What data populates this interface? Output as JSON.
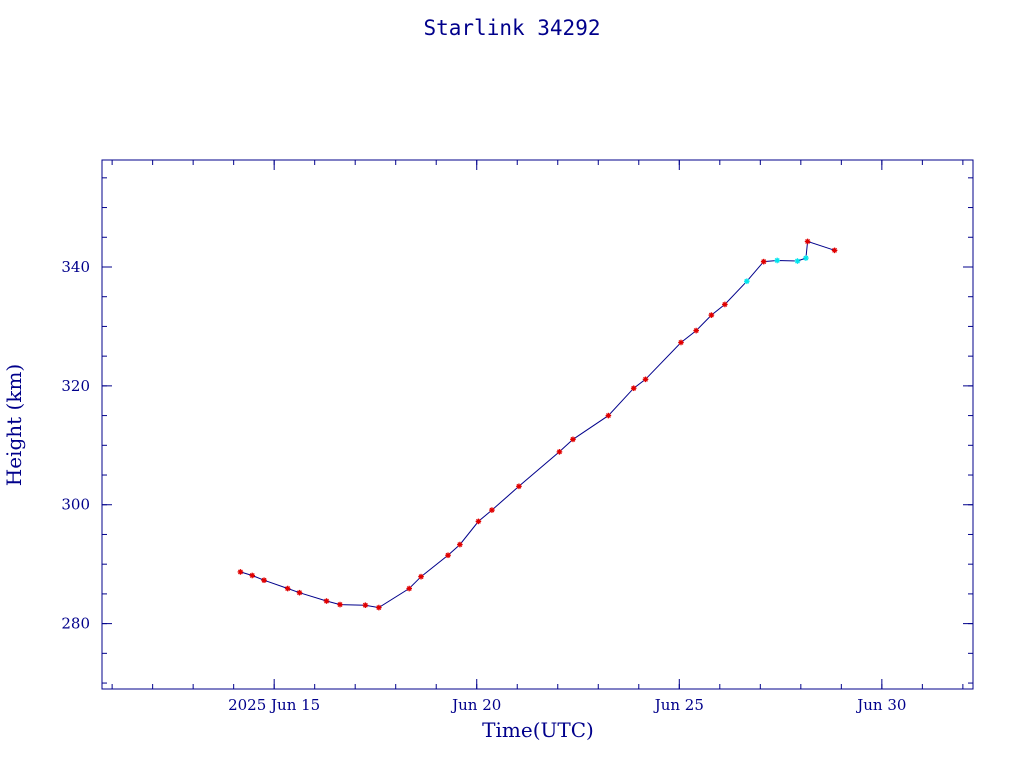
{
  "title": "Starlink 34292",
  "colors": {
    "frame": "#00008b",
    "line": "#00008b",
    "marker_primary": "#e00000",
    "marker_secondary": "#00e5ee"
  },
  "chart_data": {
    "type": "line",
    "title": "Starlink 34292",
    "xlabel": "Time(UTC)",
    "ylabel": "Height (km)",
    "x_type": "date",
    "xlim": [
      "2025-06-10T18:00",
      "2025-07-02T06:00"
    ],
    "ylim": [
      269,
      358
    ],
    "x_ticks": [
      {
        "date": "2025-06-15",
        "label": "2025 Jun 15"
      },
      {
        "date": "2025-06-20",
        "label": "Jun 20"
      },
      {
        "date": "2025-06-25",
        "label": "Jun 25"
      },
      {
        "date": "2025-06-30",
        "label": "Jun 30"
      }
    ],
    "y_ticks": [
      280,
      300,
      320,
      340
    ],
    "grid": false,
    "series": [
      {
        "marker": "asterisk",
        "points": [
          {
            "t": "2025-06-14T04:00",
            "h": 288.7,
            "c": "red"
          },
          {
            "t": "2025-06-14T11:00",
            "h": 288.1,
            "c": "red"
          },
          {
            "t": "2025-06-14T18:00",
            "h": 287.3,
            "c": "red"
          },
          {
            "t": "2025-06-15T08:00",
            "h": 285.9,
            "c": "red"
          },
          {
            "t": "2025-06-15T15:00",
            "h": 285.2,
            "c": "red"
          },
          {
            "t": "2025-06-16T07:00",
            "h": 283.8,
            "c": "red"
          },
          {
            "t": "2025-06-16T15:00",
            "h": 283.2,
            "c": "red"
          },
          {
            "t": "2025-06-17T06:00",
            "h": 283.1,
            "c": "red"
          },
          {
            "t": "2025-06-17T14:00",
            "h": 282.7,
            "c": "red"
          },
          {
            "t": "2025-06-18T08:00",
            "h": 285.9,
            "c": "red"
          },
          {
            "t": "2025-06-18T15:00",
            "h": 287.9,
            "c": "red"
          },
          {
            "t": "2025-06-19T07:00",
            "h": 291.5,
            "c": "red"
          },
          {
            "t": "2025-06-19T14:00",
            "h": 293.3,
            "c": "red"
          },
          {
            "t": "2025-06-20T01:00",
            "h": 297.2,
            "c": "red"
          },
          {
            "t": "2025-06-20T09:00",
            "h": 299.1,
            "c": "red"
          },
          {
            "t": "2025-06-21T01:00",
            "h": 303.1,
            "c": "red"
          },
          {
            "t": "2025-06-22T01:00",
            "h": 308.9,
            "c": "red"
          },
          {
            "t": "2025-06-22T09:00",
            "h": 311.0,
            "c": "red"
          },
          {
            "t": "2025-06-23T06:00",
            "h": 315.0,
            "c": "red"
          },
          {
            "t": "2025-06-23T21:00",
            "h": 319.6,
            "c": "red"
          },
          {
            "t": "2025-06-24T04:00",
            "h": 321.1,
            "c": "red"
          },
          {
            "t": "2025-06-25T01:00",
            "h": 327.3,
            "c": "red"
          },
          {
            "t": "2025-06-25T10:00",
            "h": 329.3,
            "c": "red"
          },
          {
            "t": "2025-06-25T19:00",
            "h": 331.9,
            "c": "red"
          },
          {
            "t": "2025-06-26T03:00",
            "h": 333.7,
            "c": "red"
          },
          {
            "t": "2025-06-26T16:00",
            "h": 337.6,
            "c": "cyan"
          },
          {
            "t": "2025-06-27T02:00",
            "h": 340.9,
            "c": "red"
          },
          {
            "t": "2025-06-27T10:00",
            "h": 341.1,
            "c": "cyan"
          },
          {
            "t": "2025-06-27T22:00",
            "h": 341.0,
            "c": "cyan"
          },
          {
            "t": "2025-06-28T03:00",
            "h": 341.5,
            "c": "cyan"
          },
          {
            "t": "2025-06-28T04:00",
            "h": 344.3,
            "c": "red"
          },
          {
            "t": "2025-06-28T20:00",
            "h": 342.8,
            "c": "red"
          }
        ]
      }
    ]
  }
}
